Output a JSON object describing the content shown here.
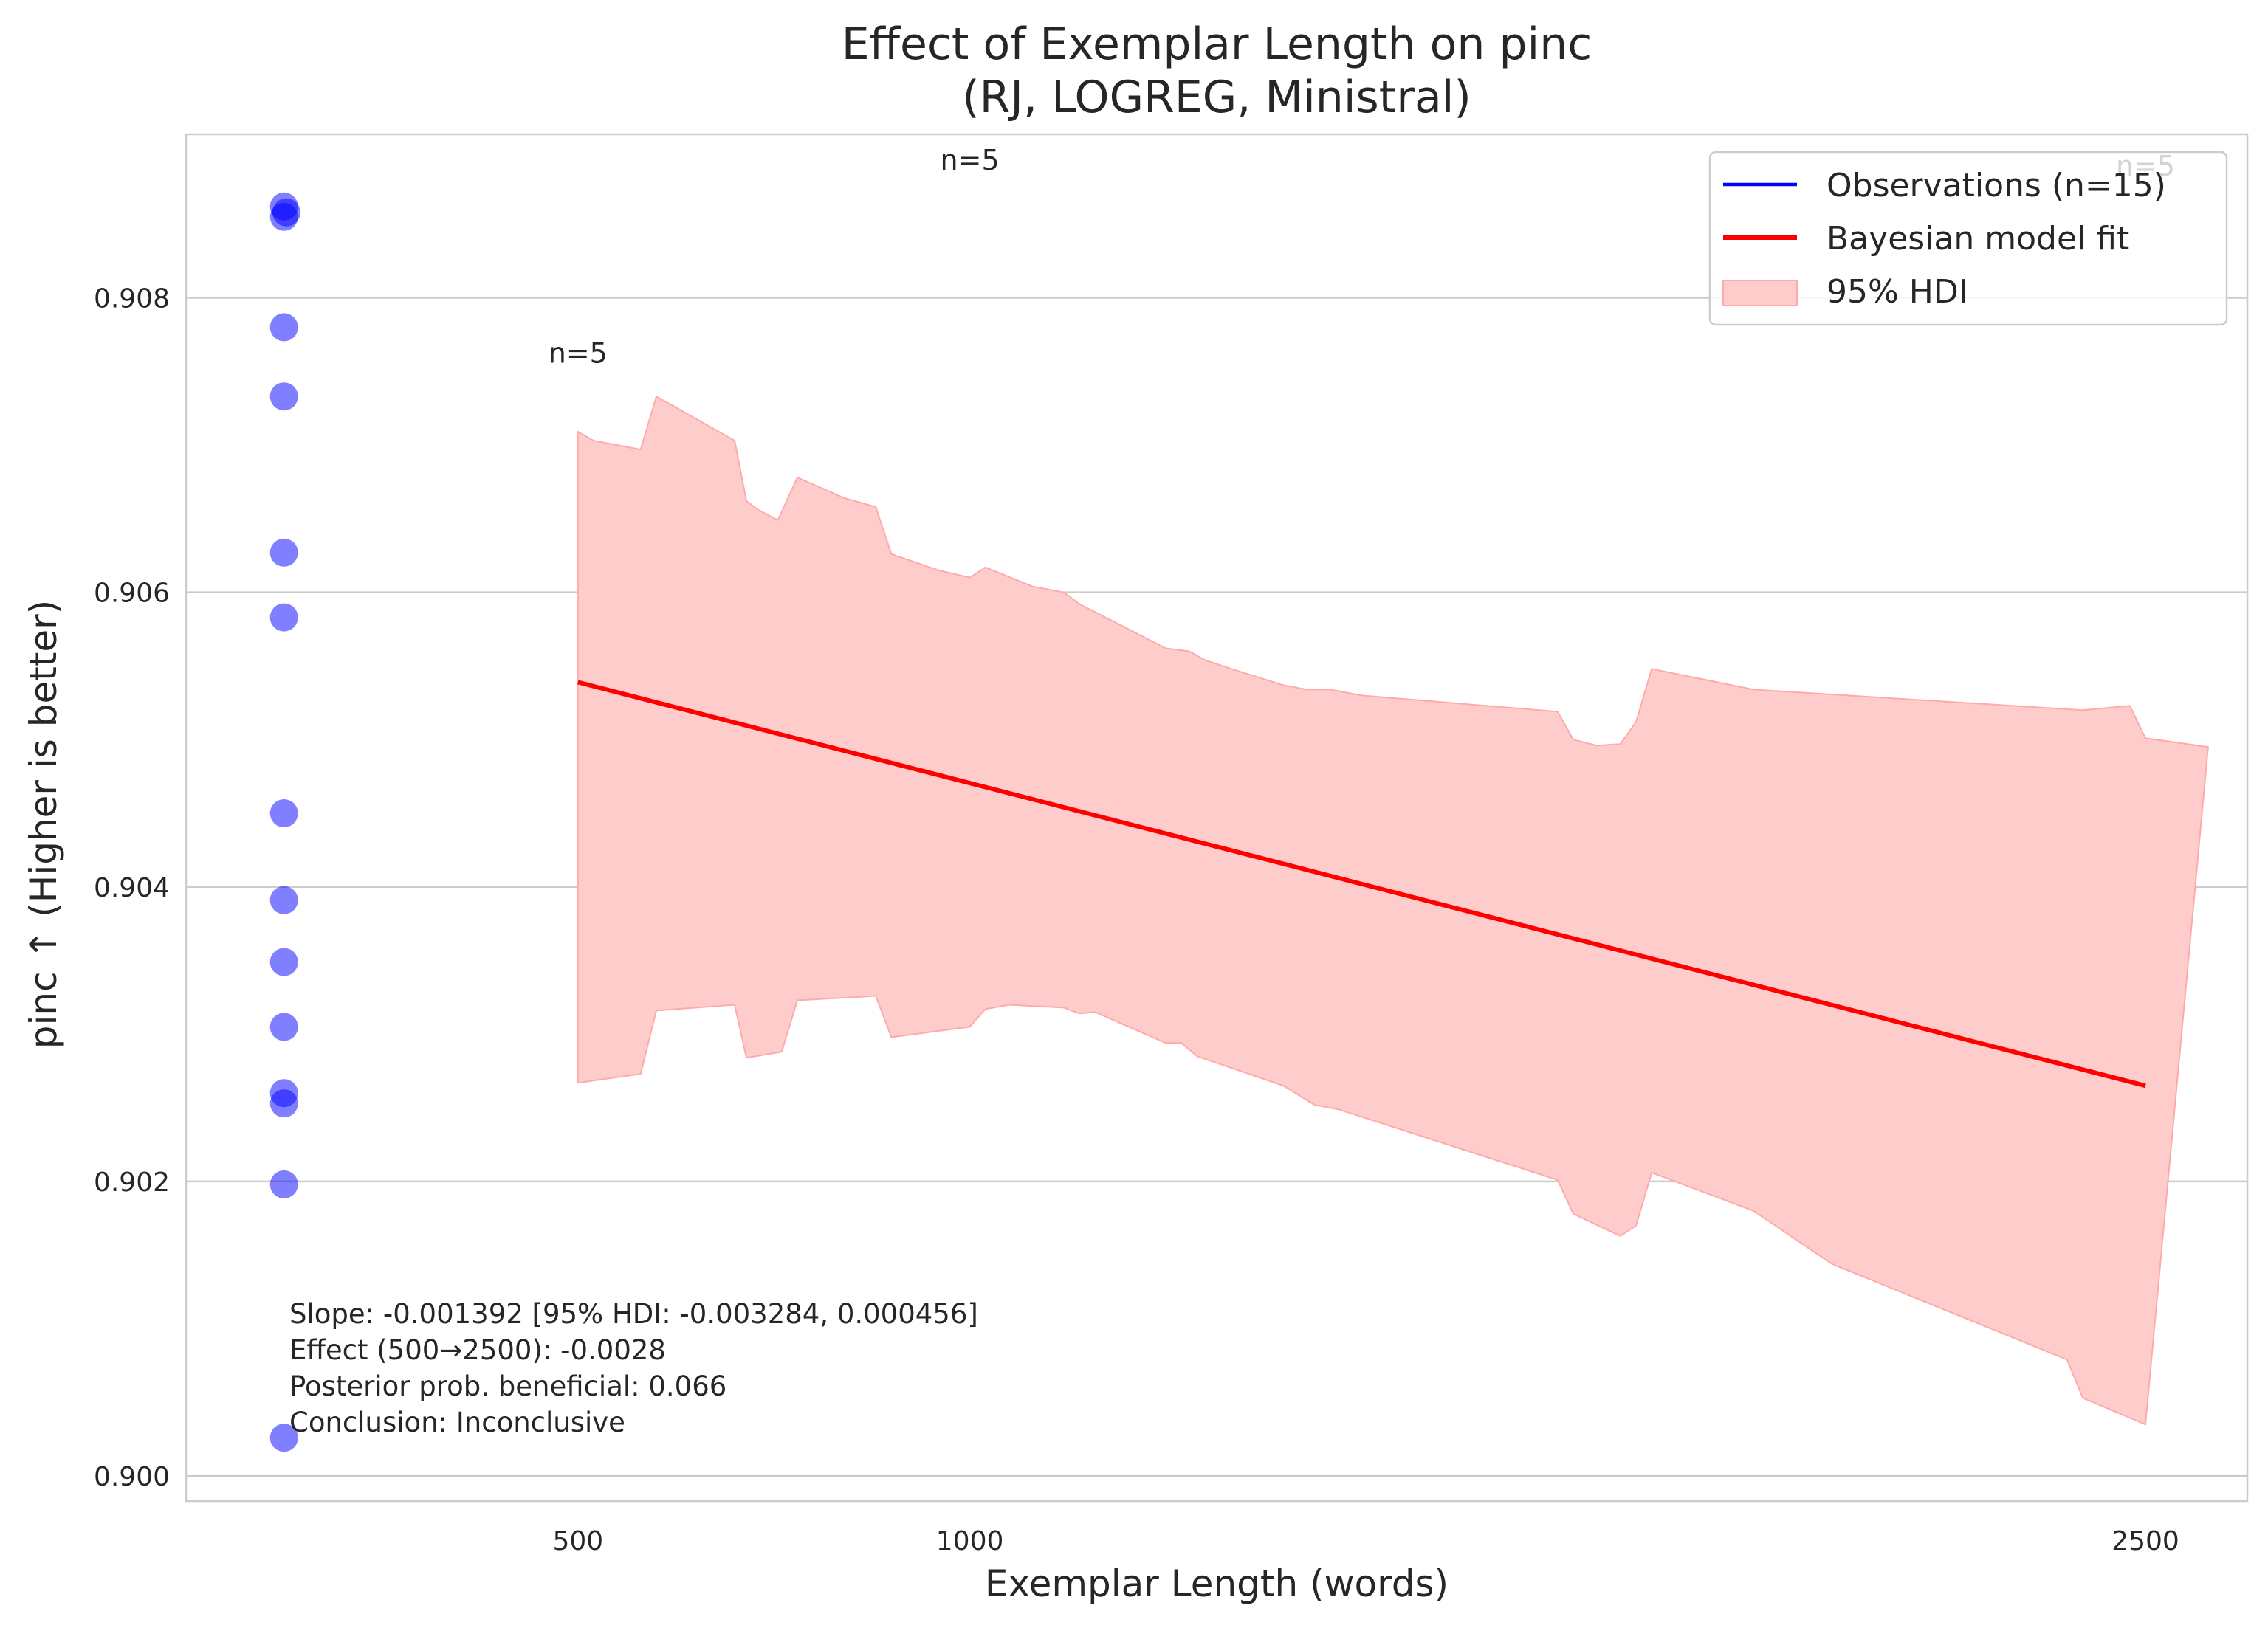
{
  "colors": {
    "observation": "#0000ff",
    "fit_line": "#ff0000",
    "hdi_fill": "#ffcccc",
    "hdi_edge": "#ffaaaa",
    "grid": "#cccccc",
    "axes_edge": "#cccccc",
    "text": "#262626"
  },
  "chart_data": {
    "type": "scatter",
    "title_line1": "Effect of Exemplar Length on pinc",
    "title_line2": "(RJ, LOGREG, Ministral)",
    "xlabel": "Exemplar Length (words)",
    "ylabel": "pinc ↑ (Higher is better)",
    "xlim": [
      0,
      2630
    ],
    "ylim": [
      0.89983,
      0.90911
    ],
    "x_ticks": [
      {
        "value": 500,
        "label": "500"
      },
      {
        "value": 1000,
        "label": "1000"
      },
      {
        "value": 2500,
        "label": "2500"
      }
    ],
    "y_ticks": [
      {
        "value": 0.9,
        "label": "0.900"
      },
      {
        "value": 0.902,
        "label": "0.902"
      },
      {
        "value": 0.904,
        "label": "0.904"
      },
      {
        "value": 0.906,
        "label": "0.906"
      },
      {
        "value": 0.908,
        "label": "0.908"
      }
    ],
    "grid": "horizontal",
    "legend_position": "top-right",
    "legend": [
      {
        "label": "Observations (n=15)",
        "kind": "line",
        "color": "#0000ff"
      },
      {
        "label": "Bayesian model fit",
        "kind": "line",
        "color": "#ff0000"
      },
      {
        "label": "95% HDI",
        "kind": "patch",
        "color": "#ffcccc"
      }
    ],
    "observations": {
      "name": "Observations (n=15)",
      "points": [
        {
          "x": 125,
          "y": 0.90862
        },
        {
          "x": 128,
          "y": 0.90858
        },
        {
          "x": 125,
          "y": 0.90855
        },
        {
          "x": 125,
          "y": 0.9078
        },
        {
          "x": 125,
          "y": 0.90733
        },
        {
          "x": 125,
          "y": 0.90627
        },
        {
          "x": 125,
          "y": 0.90583
        },
        {
          "x": 125,
          "y": 0.9045
        },
        {
          "x": 125,
          "y": 0.90391
        },
        {
          "x": 125,
          "y": 0.90349
        },
        {
          "x": 125,
          "y": 0.90305
        },
        {
          "x": 125,
          "y": 0.9026
        },
        {
          "x": 125,
          "y": 0.90253
        },
        {
          "x": 125,
          "y": 0.90198
        },
        {
          "x": 125,
          "y": 0.90026
        }
      ]
    },
    "fit_line": {
      "name": "Bayesian model fit",
      "x": [
        500,
        2500
      ],
      "y": [
        0.90539,
        0.90265
      ]
    },
    "hdi": {
      "name": "95% HDI",
      "upper": [
        [
          500,
          0.90709
        ],
        [
          520,
          0.90703
        ],
        [
          580,
          0.90697
        ],
        [
          600,
          0.90733
        ],
        [
          700,
          0.90703
        ],
        [
          715,
          0.90662
        ],
        [
          730,
          0.90656
        ],
        [
          755,
          0.90649
        ],
        [
          780,
          0.90678
        ],
        [
          840,
          0.90664
        ],
        [
          880,
          0.90658
        ],
        [
          900,
          0.90626
        ],
        [
          960,
          0.90615
        ],
        [
          1000,
          0.9061
        ],
        [
          1020,
          0.90617
        ],
        [
          1080,
          0.90604
        ],
        [
          1120,
          0.906
        ],
        [
          1140,
          0.90592
        ],
        [
          1250,
          0.90562
        ],
        [
          1280,
          0.9056
        ],
        [
          1300,
          0.90554
        ],
        [
          1340,
          0.90547
        ],
        [
          1400,
          0.90537
        ],
        [
          1430,
          0.90534
        ],
        [
          1460,
          0.90534
        ],
        [
          1500,
          0.9053
        ],
        [
          1750,
          0.90519
        ],
        [
          1770,
          0.905
        ],
        [
          1800,
          0.90496
        ],
        [
          1830,
          0.90497
        ],
        [
          1850,
          0.90512
        ],
        [
          1870,
          0.90548
        ],
        [
          2000,
          0.90534
        ],
        [
          2420,
          0.9052
        ],
        [
          2480,
          0.90523
        ],
        [
          2500,
          0.90501
        ],
        [
          2580,
          0.90495
        ]
      ],
      "lower": [
        [
          500,
          0.90267
        ],
        [
          580,
          0.90273
        ],
        [
          600,
          0.90316
        ],
        [
          700,
          0.9032
        ],
        [
          715,
          0.90284
        ],
        [
          760,
          0.90288
        ],
        [
          780,
          0.90323
        ],
        [
          880,
          0.90326
        ],
        [
          900,
          0.90298
        ],
        [
          1000,
          0.90305
        ],
        [
          1020,
          0.90317
        ],
        [
          1050,
          0.9032
        ],
        [
          1120,
          0.90318
        ],
        [
          1140,
          0.90314
        ],
        [
          1160,
          0.90315
        ],
        [
          1250,
          0.90294
        ],
        [
          1270,
          0.90294
        ],
        [
          1290,
          0.90285
        ],
        [
          1340,
          0.90276
        ],
        [
          1400,
          0.90265
        ],
        [
          1440,
          0.90252
        ],
        [
          1470,
          0.90249
        ],
        [
          1750,
          0.90201
        ],
        [
          1770,
          0.90178
        ],
        [
          1830,
          0.90163
        ],
        [
          1850,
          0.9017
        ],
        [
          1870,
          0.90206
        ],
        [
          2000,
          0.9018
        ],
        [
          2100,
          0.90144
        ],
        [
          2400,
          0.90079
        ],
        [
          2420,
          0.90053
        ],
        [
          2500,
          0.90035
        ]
      ]
    },
    "n_labels": [
      {
        "x": 500,
        "y": 0.90756,
        "label": "n=5"
      },
      {
        "x": 1000,
        "y": 0.90887,
        "label": "n=5"
      },
      {
        "x": 2500,
        "y": 0.90883,
        "label": "n=5"
      }
    ],
    "annotation_lines": [
      "Slope: -0.001392 [95% HDI: -0.003284, 0.000456]",
      "Effect (500→2500): -0.0028",
      "Posterior prob. beneficial: 0.066",
      "Conclusion: Inconclusive"
    ]
  }
}
